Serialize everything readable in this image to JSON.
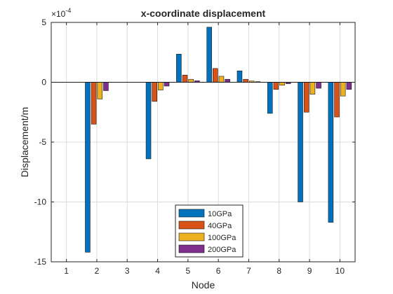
{
  "chart_data": {
    "type": "bar",
    "title": "x-coordinate displacement",
    "xlabel": "Node",
    "ylabel": "Displacement/m",
    "exponent_label": "×10",
    "exponent_power": "-4",
    "categories": [
      "1",
      "2",
      "3",
      "4",
      "5",
      "6",
      "7",
      "8",
      "9",
      "10"
    ],
    "series": [
      {
        "name": "10GPa",
        "color": "#0072BD",
        "values": [
          0,
          -14.2,
          0,
          -6.4,
          2.35,
          4.6,
          0.95,
          -2.6,
          -10.0,
          -11.7
        ]
      },
      {
        "name": "40GPa",
        "color": "#D95319",
        "values": [
          0,
          -3.5,
          0,
          -1.6,
          0.6,
          1.15,
          0.25,
          -0.6,
          -2.5,
          -2.9
        ]
      },
      {
        "name": "100GPa",
        "color": "#EDB120",
        "values": [
          0,
          -1.4,
          0,
          -0.65,
          0.25,
          0.5,
          0.1,
          -0.25,
          -1.0,
          -1.15
        ]
      },
      {
        "name": "200GPa",
        "color": "#7E2F8E",
        "values": [
          0,
          -0.7,
          0,
          -0.32,
          0.12,
          0.25,
          0.05,
          -0.12,
          -0.5,
          -0.6
        ]
      }
    ],
    "yticks": [
      5,
      0,
      -5,
      -10,
      -15
    ],
    "ylim": [
      -15,
      5
    ],
    "xlim": [
      0.5,
      10.5
    ],
    "grid": true,
    "legend_position": "bottom-center"
  }
}
